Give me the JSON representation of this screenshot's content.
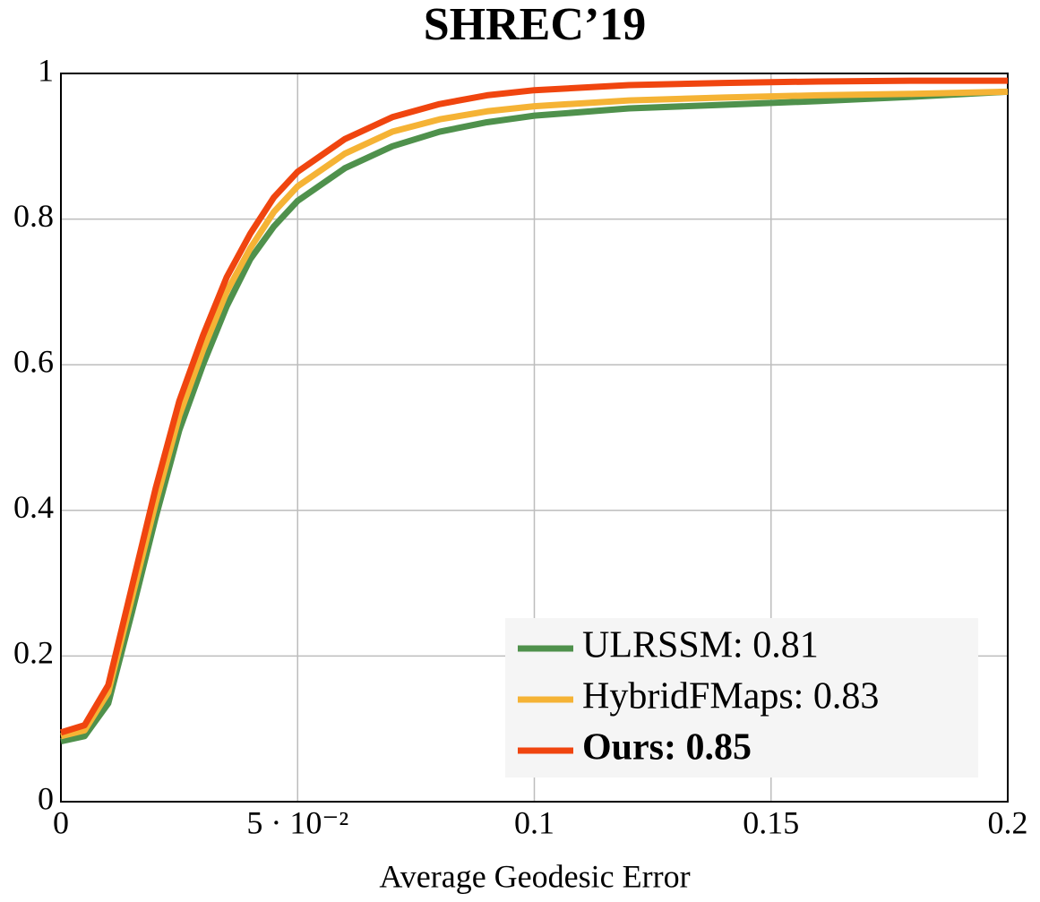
{
  "chart_data": {
    "type": "line",
    "title": "SHREC’19",
    "x_label": "Average Geodesic Error",
    "x": [
      0,
      0.005,
      0.01,
      0.015,
      0.02,
      0.025,
      0.03,
      0.035,
      0.04,
      0.045,
      0.05,
      0.06,
      0.07,
      0.08,
      0.09,
      0.1,
      0.12,
      0.14,
      0.16,
      0.18,
      0.2
    ],
    "series": [
      {
        "name": "ULRSSM: 0.81",
        "color": "#4f914c",
        "bold": false,
        "values": [
          0.083,
          0.09,
          0.135,
          0.26,
          0.39,
          0.51,
          0.6,
          0.68,
          0.745,
          0.79,
          0.825,
          0.87,
          0.9,
          0.92,
          0.933,
          0.942,
          0.952,
          0.957,
          0.962,
          0.968,
          0.975
        ]
      },
      {
        "name": "HybridFMaps: 0.83",
        "color": "#f5b335",
        "bold": false,
        "values": [
          0.09,
          0.098,
          0.15,
          0.28,
          0.41,
          0.53,
          0.62,
          0.7,
          0.76,
          0.81,
          0.845,
          0.89,
          0.92,
          0.937,
          0.948,
          0.955,
          0.963,
          0.967,
          0.97,
          0.972,
          0.975
        ]
      },
      {
        "name": "Ours: 0.85",
        "color": "#f0450f",
        "bold": true,
        "values": [
          0.095,
          0.105,
          0.16,
          0.295,
          0.43,
          0.55,
          0.64,
          0.72,
          0.78,
          0.83,
          0.865,
          0.91,
          0.94,
          0.958,
          0.97,
          0.977,
          0.984,
          0.987,
          0.989,
          0.99,
          0.99
        ]
      }
    ],
    "xlim": [
      0,
      0.2
    ],
    "ylim": [
      0,
      1
    ],
    "xticks": [
      0,
      {
        "value": 0.05,
        "label": "5 · 10⁻²"
      },
      0.1,
      0.15,
      0.2
    ],
    "yticks": [
      0,
      0.2,
      0.4,
      0.6,
      0.8,
      1
    ],
    "grid": true,
    "legend": "lower-right"
  }
}
